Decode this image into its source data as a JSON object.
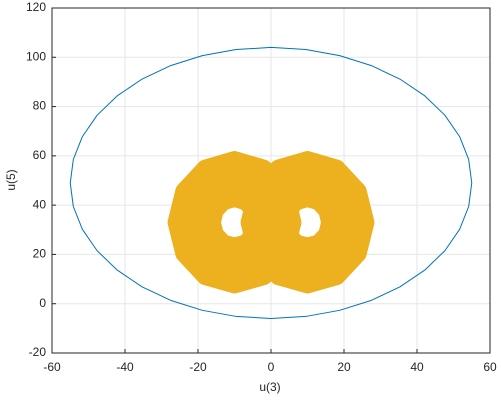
{
  "chart_data": {
    "type": "line",
    "xlabel": "u(3)",
    "ylabel": "u(5)",
    "xlim": [
      -60,
      60
    ],
    "xticks": [
      -60,
      -40,
      -20,
      0,
      20,
      40,
      60
    ],
    "ylim": [
      -20,
      120
    ],
    "yticks": [
      -20,
      0,
      20,
      40,
      60,
      80,
      100,
      120
    ],
    "grid": true,
    "series": [
      {
        "color": "#0072bd",
        "x": [
          55,
          54.16,
          51.68,
          47.63,
          42.13,
          35.35,
          27.5,
          18.81,
          9.55,
          0,
          -9.55,
          -18.81,
          -27.5,
          -35.35,
          -42.13,
          -47.63,
          -51.68,
          -54.16,
          -55,
          -54.16,
          -51.68,
          -47.63,
          -42.13,
          -35.35,
          -27.5,
          -18.81,
          -9.55,
          0,
          9.55,
          18.81,
          27.5,
          35.35,
          42.13,
          47.63,
          51.68,
          54.16,
          55
        ],
        "values": [
          49,
          58.55,
          67.81,
          76.5,
          84.35,
          91.13,
          96.63,
          100.68,
          103.16,
          104,
          103.16,
          100.68,
          96.63,
          91.13,
          84.35,
          76.5,
          67.81,
          58.55,
          49,
          39.45,
          30.19,
          21.5,
          13.65,
          6.87,
          1.37,
          -2.68,
          -5.16,
          -6,
          -5.16,
          -2.68,
          1.37,
          6.87,
          13.65,
          21.5,
          30.19,
          39.45,
          49
        ]
      },
      {
        "color": "#edb120",
        "x": [
          -4.05,
          -4.85,
          -7.03,
          -10,
          -12.98,
          -15.15,
          -15.95,
          -15.15,
          -12.98,
          -10,
          -7.03,
          -4.85,
          -4.05,
          -0.65,
          -1.9,
          -5.3,
          -10,
          -14.7,
          -18.1,
          -19.35,
          -18.1,
          -14.7,
          -10,
          -5.3,
          -1.9,
          -0.65,
          2.75,
          1.0,
          -3.6,
          -10,
          -16.4,
          -21.0,
          -22.75,
          -21.0,
          -16.4,
          -10,
          -3.6,
          1.0,
          2.75,
          6.15,
          4.0,
          -1.9,
          -10,
          -18.1,
          -24.0,
          -26.15,
          -24.0,
          -18.1,
          -10,
          -1.9,
          4.0,
          6.15,
          4.05,
          4.85,
          7.03,
          10,
          12.98,
          15.15,
          15.95,
          15.15,
          12.98,
          10,
          7.03,
          4.85,
          4.05,
          0.65,
          1.9,
          5.3,
          10,
          14.7,
          18.1,
          19.35,
          18.1,
          14.7,
          10,
          5.3,
          1.9,
          0.65,
          -2.75,
          -1.0,
          3.6,
          10,
          16.4,
          21.0,
          22.75,
          21.0,
          16.4,
          10,
          3.6,
          -1.0,
          -2.75,
          -6.15,
          -4.0,
          1.9,
          10,
          18.1,
          24.0,
          26.15,
          24.0,
          18.1,
          10,
          1.9,
          -4.0,
          -6.15
        ],
        "values": [
          33,
          37.7,
          41.2,
          42.5,
          41.2,
          37.7,
          33,
          28.3,
          24.8,
          23.6,
          24.8,
          28.3,
          33,
          33,
          40.4,
          45.9,
          47.9,
          45.9,
          40.4,
          33,
          25.6,
          20.1,
          18.2,
          20.1,
          25.6,
          33,
          33,
          43.1,
          50.5,
          53.3,
          50.5,
          43.1,
          33,
          22.9,
          15.5,
          12.8,
          15.5,
          22.9,
          33,
          33,
          45.8,
          55.2,
          58.7,
          55.2,
          45.8,
          33,
          20.2,
          10.8,
          7.4,
          10.8,
          20.2,
          33,
          33,
          37.7,
          41.2,
          42.5,
          41.2,
          37.7,
          33,
          28.3,
          24.8,
          23.6,
          24.8,
          28.3,
          33,
          33,
          40.4,
          45.9,
          47.9,
          45.9,
          40.4,
          33,
          25.6,
          20.1,
          18.2,
          20.1,
          25.6,
          33,
          33,
          43.1,
          50.5,
          53.3,
          50.5,
          43.1,
          33,
          22.9,
          15.5,
          12.8,
          15.5,
          22.9,
          33,
          33,
          45.8,
          55.2,
          58.7,
          55.2,
          45.8,
          33,
          20.2,
          10.8,
          7.4,
          10.8,
          20.2,
          33
        ]
      }
    ]
  }
}
